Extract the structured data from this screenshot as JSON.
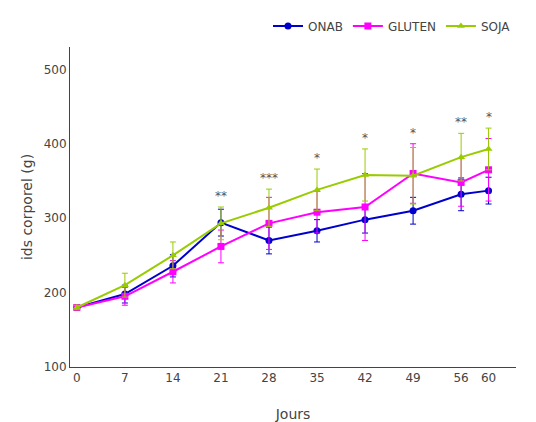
{
  "chart_data": {
    "type": "line",
    "xlabel": "Jours",
    "ylabel": "ids corporel (g)",
    "x": [
      0,
      7,
      14,
      21,
      28,
      35,
      42,
      49,
      56,
      60
    ],
    "series": [
      {
        "name": "ONAB",
        "color": "#0000CD",
        "marker": "circle",
        "values": [
          180,
          198,
          236,
          294,
          270,
          283,
          298,
          310,
          332,
          337
        ],
        "errors": [
          3,
          12,
          15,
          18,
          18,
          15,
          18,
          18,
          22,
          18
        ]
      },
      {
        "name": "GLUTEN",
        "color": "#FF00FF",
        "marker": "square",
        "values": [
          180,
          195,
          228,
          262,
          293,
          308,
          315,
          360,
          348,
          365
        ],
        "errors": [
          3,
          12,
          15,
          22,
          35,
          28,
          45,
          40,
          32,
          42
        ]
      },
      {
        "name": "SOJA",
        "color": "#99CC00",
        "marker": "triangle-up",
        "values": [
          180,
          210,
          250,
          293,
          314,
          338,
          358,
          357,
          382,
          393
        ],
        "errors": [
          3,
          16,
          18,
          22,
          25,
          28,
          35,
          38,
          32,
          28
        ]
      }
    ],
    "annotations": [
      {
        "x": 21,
        "text": "**"
      },
      {
        "x": 28,
        "text": "***"
      },
      {
        "x": 35,
        "text": "*"
      },
      {
        "x": 42,
        "text": "*"
      },
      {
        "x": 49,
        "text": "*"
      },
      {
        "x": 56,
        "text": "**"
      },
      {
        "x": 60,
        "text": "*"
      }
    ],
    "xlim": [
      -1,
      64
    ],
    "xticks": [
      0,
      7,
      14,
      21,
      28,
      35,
      42,
      49,
      56,
      60
    ],
    "ylim": [
      100,
      530
    ],
    "yticks": [
      100,
      200,
      300,
      400,
      500
    ],
    "grid": false,
    "legend": "upper right"
  }
}
